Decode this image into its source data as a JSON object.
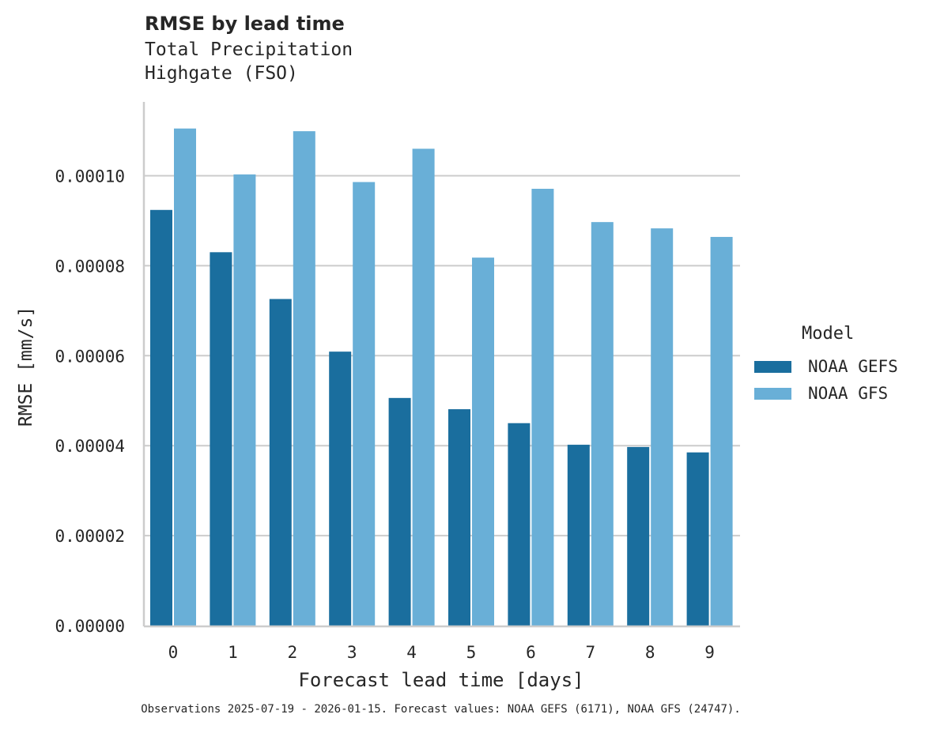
{
  "header": {
    "title": "RMSE by lead time",
    "subtitle_line1": "Total Precipitation",
    "subtitle_line2": "Highgate (FSO)"
  },
  "legend": {
    "title": "Model",
    "items": [
      {
        "label": "NOAA GEFS",
        "color": "#1a6e9e"
      },
      {
        "label": "NOAA GFS",
        "color": "#69afd7"
      }
    ]
  },
  "footer": {
    "text": "Observations 2025-07-19 - 2026-01-15. Forecast values: NOAA GEFS (6171), NOAA GFS (24747)."
  },
  "chart_data": {
    "type": "bar",
    "title": "RMSE by lead time",
    "subtitle": "Total Precipitation — Highgate (FSO)",
    "xlabel": "Forecast lead time [days]",
    "ylabel": "RMSE [mm/s]",
    "categories": [
      "0",
      "1",
      "2",
      "3",
      "4",
      "5",
      "6",
      "7",
      "8",
      "9"
    ],
    "series": [
      {
        "name": "NOAA GEFS",
        "color": "#1a6e9e",
        "values": [
          9.24e-05,
          8.3e-05,
          7.26e-05,
          6.09e-05,
          5.06e-05,
          4.81e-05,
          4.5e-05,
          4.02e-05,
          3.97e-05,
          3.85e-05
        ]
      },
      {
        "name": "NOAA GFS",
        "color": "#69afd7",
        "values": [
          0.0001105,
          0.0001003,
          0.0001099,
          9.86e-05,
          0.000106,
          8.18e-05,
          9.71e-05,
          8.97e-05,
          8.83e-05,
          8.64e-05
        ]
      }
    ],
    "ylim": [
      0,
      0.000117
    ],
    "yticks": [
      "0.00000",
      "0.00002",
      "0.00004",
      "0.00006",
      "0.00008",
      "0.00010"
    ],
    "ytick_values": [
      0,
      2e-05,
      4e-05,
      6e-05,
      8e-05,
      0.0001
    ],
    "grid": "y",
    "legend_position": "right",
    "legend_title": "Model"
  }
}
